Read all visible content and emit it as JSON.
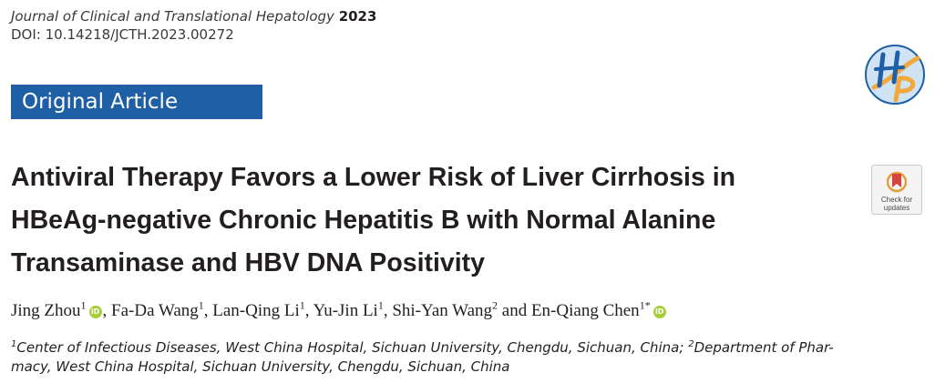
{
  "header": {
    "journal_name": "Journal of Clinical and Translational Hepatology",
    "year": "2023",
    "doi": "DOI: 10.14218/JCTH.2023.00272"
  },
  "banner": {
    "label": "Original Article"
  },
  "logo": {
    "icon": "jcth-hp-logo",
    "text": "HP",
    "colors": {
      "blue": "#1f5fa6",
      "orange": "#f2a93b"
    }
  },
  "check_updates": {
    "text": "Check for\nupdates",
    "icon": "check-for-updates-icon"
  },
  "title": {
    "lines": [
      "Antiviral Therapy Favors a Lower Risk of Liver Cirrhosis in",
      "HBeAg-negative Chronic Hepatitis B with Normal Alanine",
      "Transaminase and HBV DNA Positivity"
    ]
  },
  "authors": [
    {
      "name": "Jing Zhou",
      "sup": "1",
      "orcid": true,
      "sep": ", "
    },
    {
      "name": "Fa-Da Wang",
      "sup": "1",
      "orcid": false,
      "sep": ", "
    },
    {
      "name": "Lan-Qing Li",
      "sup": "1",
      "orcid": false,
      "sep": ", "
    },
    {
      "name": "Yu-Jin Li",
      "sup": "1",
      "orcid": false,
      "sep": ", "
    },
    {
      "name": "Shi-Yan Wang",
      "sup": "2",
      "orcid": false,
      "sep": " and "
    },
    {
      "name": "En-Qiang Chen",
      "sup": "1*",
      "orcid": true,
      "sep": ""
    }
  ],
  "orcid_label": "iD",
  "affiliations": {
    "line1_sup": "1",
    "line1_text": "Center of Infectious Diseases, West China Hospital, Sichuan University, Chengdu, Sichuan, China; ",
    "line1_sup2": "2",
    "line1_tail": "Department of Phar-",
    "line2": "macy, West China Hospital, Sichuan University, Chengdu, Sichuan, China"
  },
  "colors": {
    "banner": "#1f5fa6",
    "orcid": "#a6ce39",
    "text": "#231f20"
  }
}
